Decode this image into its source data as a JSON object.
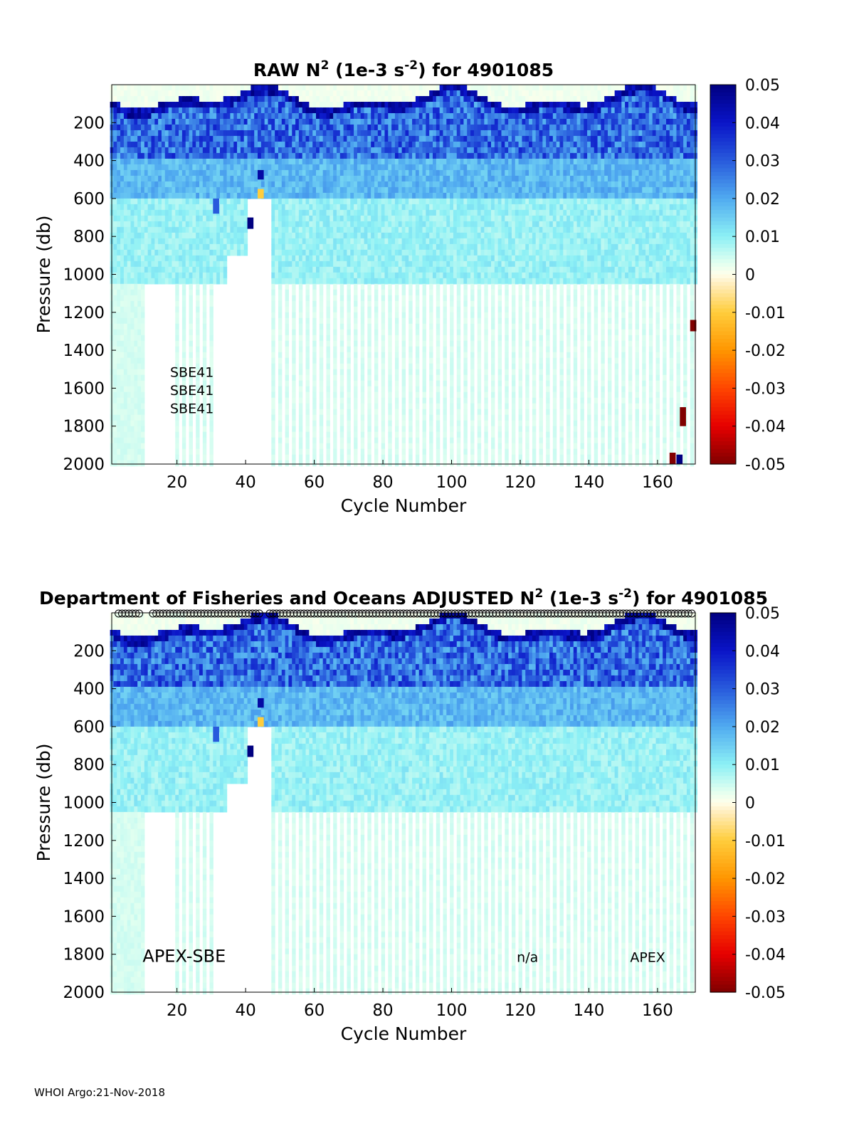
{
  "chart_data": [
    {
      "type": "heatmap",
      "title": {
        "pre": "RAW N",
        "sup1": "2",
        "mid": " (1e-3 s",
        "sup2": "-2",
        "post": ") for 4901085"
      },
      "xlabel": "Cycle Number",
      "ylabel": "Pressure (db)",
      "xlim": [
        1,
        171
      ],
      "ylim": [
        0,
        2000
      ],
      "xticks": [
        20,
        40,
        60,
        80,
        100,
        120,
        140,
        160
      ],
      "yticks": [
        200,
        400,
        600,
        800,
        1000,
        1200,
        1400,
        1600,
        1800,
        2000
      ],
      "colorbar": {
        "range": [
          -0.05,
          0.05
        ],
        "ticks": [
          "0.05",
          "0.04",
          "0.03",
          "0.02",
          "0.01",
          "0",
          "-0.01",
          "-0.02",
          "-0.03",
          "-0.04",
          "-0.05"
        ]
      },
      "annotations": [
        {
          "text": "SBE41",
          "x": 18,
          "y": 1515
        },
        {
          "text": "SBE41",
          "x": 18,
          "y": 1610
        },
        {
          "text": "SBE41",
          "x": 18,
          "y": 1705
        }
      ]
    },
    {
      "type": "heatmap",
      "title": {
        "pre": "Department of Fisheries and Oceans  ADJUSTED N",
        "sup1": "2",
        "mid": " (1e-3 s",
        "sup2": "-2",
        "post": ") for 4901085"
      },
      "xlabel": "Cycle Number",
      "ylabel": "Pressure (db)",
      "xlim": [
        1,
        171
      ],
      "ylim": [
        0,
        2000
      ],
      "xticks": [
        20,
        40,
        60,
        80,
        100,
        120,
        140,
        160
      ],
      "yticks": [
        200,
        400,
        600,
        800,
        1000,
        1200,
        1400,
        1600,
        1800,
        2000
      ],
      "colorbar": {
        "range": [
          -0.05,
          0.05
        ],
        "ticks": [
          "0.05",
          "0.04",
          "0.03",
          "0.02",
          "0.01",
          "0",
          "-0.01",
          "-0.02",
          "-0.03",
          "-0.04",
          "-0.05"
        ]
      },
      "annotations": [
        {
          "text": "APEX-SBE",
          "x": 10,
          "y": 1815,
          "size": 24
        },
        {
          "text": "n/a",
          "x": 119,
          "y": 1815,
          "size": 19
        },
        {
          "text": "APEX",
          "x": 152,
          "y": 1815,
          "size": 19
        }
      ],
      "qc_marker_cycles": "circles drawn along the top axis for each adjusted cycle"
    }
  ],
  "footer": "WHOI Argo:21-Nov-2018"
}
